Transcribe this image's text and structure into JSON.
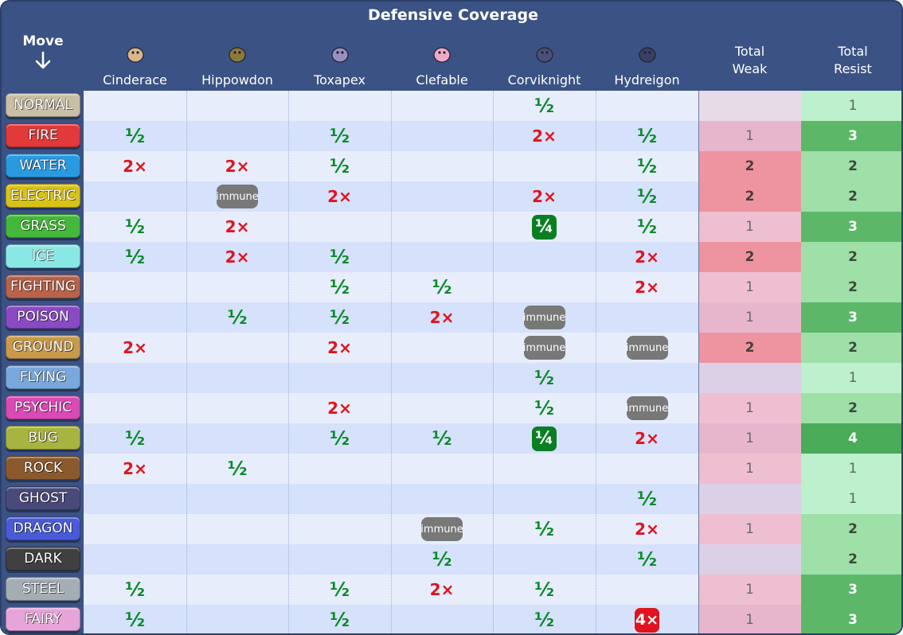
{
  "title": "Defensive Coverage",
  "move_header": "Move",
  "pokemon": [
    {
      "name": "Cinderace",
      "sprite_color": "#d9b68c"
    },
    {
      "name": "Hippowdon",
      "sprite_color": "#8c7a3a"
    },
    {
      "name": "Toxapex",
      "sprite_color": "#9a8fc4"
    },
    {
      "name": "Clefable",
      "sprite_color": "#f0a8c8"
    },
    {
      "name": "Corviknight",
      "sprite_color": "#4a4f7a"
    },
    {
      "name": "Hydreigon",
      "sprite_color": "#3a3f6a"
    }
  ],
  "total_weak_header": [
    "Total",
    "Weak"
  ],
  "total_resist_header": [
    "Total",
    "Resist"
  ],
  "effectiveness_legend": {
    "half": "½",
    "quarter": "¼",
    "weak": "2×",
    "quad": "4×",
    "immune": "immune"
  },
  "rows": [
    {
      "type": "NORMAL",
      "color": "#c8bfa4",
      "cells": [
        "",
        "",
        "",
        "",
        "½",
        ""
      ],
      "weak": "",
      "resist": "1"
    },
    {
      "type": "FIRE",
      "color": "#e03a3a",
      "cells": [
        "½",
        "",
        "½",
        "",
        "2×",
        "½"
      ],
      "weak": "1",
      "resist": "3"
    },
    {
      "type": "WATER",
      "color": "#2a9ae0",
      "cells": [
        "2×",
        "2×",
        "½",
        "",
        "",
        "½"
      ],
      "weak": "2",
      "resist": "2"
    },
    {
      "type": "ELECTRIC",
      "color": "#d8c21a",
      "cells": [
        "",
        "immune",
        "2×",
        "",
        "2×",
        "½"
      ],
      "weak": "2",
      "resist": "2"
    },
    {
      "type": "GRASS",
      "color": "#44b83a",
      "cells": [
        "½",
        "2×",
        "",
        "",
        "¼",
        "½"
      ],
      "weak": "1",
      "resist": "3"
    },
    {
      "type": "ICE",
      "color": "#8ae8e4",
      "cells": [
        "½",
        "2×",
        "½",
        "",
        "",
        "2×"
      ],
      "weak": "2",
      "resist": "2"
    },
    {
      "type": "FIGHTING",
      "color": "#b8634a",
      "cells": [
        "",
        "",
        "½",
        "½",
        "",
        "2×"
      ],
      "weak": "1",
      "resist": "2"
    },
    {
      "type": "POISON",
      "color": "#8a4ac4",
      "cells": [
        "",
        "½",
        "½",
        "2×",
        "immune",
        ""
      ],
      "weak": "1",
      "resist": "3"
    },
    {
      "type": "GROUND",
      "color": "#c89a4a",
      "cells": [
        "2×",
        "",
        "2×",
        "",
        "immune",
        "immune"
      ],
      "weak": "2",
      "resist": "2"
    },
    {
      "type": "FLYING",
      "color": "#78a8dc",
      "cells": [
        "",
        "",
        "",
        "",
        "½",
        ""
      ],
      "weak": "",
      "resist": "1"
    },
    {
      "type": "PSYCHIC",
      "color": "#d84ab4",
      "cells": [
        "",
        "",
        "2×",
        "",
        "½",
        "immune"
      ],
      "weak": "1",
      "resist": "2"
    },
    {
      "type": "BUG",
      "color": "#a8b440",
      "cells": [
        "½",
        "",
        "½",
        "½",
        "¼",
        "2×"
      ],
      "weak": "1",
      "resist": "4"
    },
    {
      "type": "ROCK",
      "color": "#8a5a2e",
      "cells": [
        "2×",
        "½",
        "",
        "",
        "",
        ""
      ],
      "weak": "1",
      "resist": "1"
    },
    {
      "type": "GHOST",
      "color": "#4a4a7a",
      "cells": [
        "",
        "",
        "",
        "",
        "",
        "½"
      ],
      "weak": "",
      "resist": "1"
    },
    {
      "type": "DRAGON",
      "color": "#4a5ad8",
      "cells": [
        "",
        "",
        "",
        "immune",
        "½",
        "2×"
      ],
      "weak": "1",
      "resist": "2"
    },
    {
      "type": "DARK",
      "color": "#404040",
      "cells": [
        "",
        "",
        "",
        "½",
        "",
        "½"
      ],
      "weak": "",
      "resist": "2"
    },
    {
      "type": "STEEL",
      "color": "#a4acb4",
      "cells": [
        "½",
        "",
        "½",
        "2×",
        "½",
        ""
      ],
      "weak": "1",
      "resist": "3"
    },
    {
      "type": "FAIRY",
      "color": "#e6a4d8",
      "cells": [
        "½",
        "",
        "½",
        "",
        "½",
        "4×"
      ],
      "weak": "1",
      "resist": "3"
    }
  ]
}
